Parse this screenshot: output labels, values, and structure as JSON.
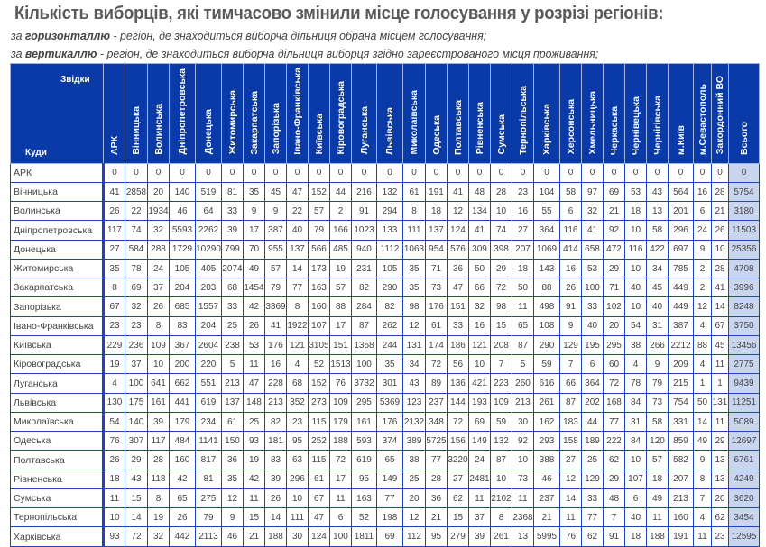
{
  "title": "Кількість виборців, які тимчасово змінили місце голосування у розрізі регіонів:",
  "subtitle1": {
    "prefix": "за ",
    "bold": "горизонталлю",
    "rest": " - регіон, де знаходиться виборча дільниця обрана місцем голосування;"
  },
  "subtitle2": {
    "prefix": "за ",
    "bold": "вертикаллю",
    "rest": " - регіон, де знаходиться виборча дільниця виборця згідно зареєстрованого місця проживання;"
  },
  "colors": {
    "header_bg": "#0a3aa8",
    "border": "#1c46b4",
    "total_bg": "#c9d5ee"
  },
  "table": {
    "corner_from": "Звідки",
    "corner_to": "Куди",
    "columns": [
      "АРК",
      "Вінницька",
      "Волинська",
      "Дніпропетровська",
      "Донецька",
      "Житомирська",
      "Закарпатська",
      "Запорізька",
      "Івано-Франківська",
      "Київська",
      "Кіровоградська",
      "Луганська",
      "Львівська",
      "Миколаївська",
      "Одеська",
      "Полтавська",
      "Рівненська",
      "Сумська",
      "Тернопільська",
      "Харківська",
      "Херсонська",
      "Хмельницька",
      "Черкаська",
      "Чернівецька",
      "Чернігівська",
      "м.Київ",
      "м.Севастополь",
      "Закордонний ВО",
      "Всього"
    ],
    "rows": [
      {
        "name": "АРК",
        "values": [
          0,
          0,
          0,
          0,
          0,
          0,
          0,
          0,
          0,
          0,
          0,
          0,
          0,
          0,
          0,
          0,
          0,
          0,
          0,
          0,
          0,
          0,
          0,
          0,
          0,
          0,
          0,
          0,
          0
        ]
      },
      {
        "name": "Вінницька",
        "values": [
          41,
          2858,
          20,
          140,
          519,
          81,
          35,
          45,
          47,
          152,
          44,
          216,
          132,
          61,
          191,
          41,
          48,
          28,
          23,
          104,
          58,
          97,
          69,
          53,
          43,
          564,
          16,
          28,
          5754
        ]
      },
      {
        "name": "Волинська",
        "values": [
          26,
          22,
          1934,
          46,
          64,
          33,
          9,
          9,
          22,
          57,
          2,
          91,
          294,
          8,
          18,
          12,
          134,
          10,
          16,
          55,
          6,
          32,
          21,
          18,
          13,
          201,
          6,
          21,
          3180
        ]
      },
      {
        "name": "Дніпропетровська",
        "values": [
          117,
          74,
          32,
          5593,
          2262,
          39,
          17,
          387,
          40,
          79,
          166,
          1023,
          133,
          111,
          137,
          124,
          41,
          74,
          27,
          364,
          116,
          41,
          92,
          10,
          58,
          296,
          24,
          26,
          11503
        ]
      },
      {
        "name": "Донецька",
        "values": [
          27,
          584,
          288,
          1729,
          10290,
          799,
          70,
          955,
          137,
          566,
          485,
          940,
          1112,
          1063,
          954,
          576,
          309,
          398,
          207,
          1069,
          414,
          658,
          472,
          116,
          422,
          697,
          9,
          10,
          25356
        ]
      },
      {
        "name": "Житомирська",
        "values": [
          35,
          78,
          24,
          105,
          405,
          2074,
          49,
          57,
          14,
          173,
          19,
          231,
          105,
          35,
          71,
          36,
          50,
          29,
          18,
          143,
          16,
          53,
          29,
          10,
          34,
          785,
          2,
          28,
          4708
        ]
      },
      {
        "name": "Закарпатська",
        "values": [
          8,
          69,
          37,
          204,
          203,
          68,
          1454,
          79,
          77,
          163,
          57,
          82,
          290,
          35,
          73,
          47,
          66,
          72,
          50,
          88,
          26,
          100,
          71,
          40,
          45,
          449,
          2,
          41,
          3996
        ]
      },
      {
        "name": "Запорізька",
        "values": [
          67,
          32,
          26,
          685,
          1557,
          33,
          42,
          3369,
          8,
          160,
          88,
          284,
          82,
          98,
          176,
          151,
          32,
          98,
          11,
          498,
          91,
          33,
          102,
          10,
          40,
          449,
          12,
          14,
          8248
        ]
      },
      {
        "name": "Івано-Франківська",
        "values": [
          23,
          23,
          8,
          83,
          204,
          25,
          26,
          41,
          1922,
          107,
          17,
          87,
          262,
          12,
          61,
          33,
          16,
          15,
          65,
          108,
          9,
          40,
          20,
          54,
          31,
          387,
          4,
          67,
          3750
        ]
      },
      {
        "name": "Київська",
        "values": [
          229,
          236,
          109,
          367,
          2604,
          238,
          53,
          176,
          121,
          3105,
          151,
          1358,
          244,
          131,
          174,
          186,
          121,
          208,
          87,
          290,
          129,
          195,
          295,
          38,
          266,
          2212,
          88,
          45,
          13456
        ]
      },
      {
        "name": "Кіровоградська",
        "values": [
          19,
          37,
          10,
          200,
          220,
          5,
          11,
          16,
          4,
          52,
          1513,
          100,
          35,
          34,
          72,
          56,
          10,
          7,
          5,
          59,
          7,
          6,
          60,
          4,
          9,
          209,
          4,
          11,
          2775
        ]
      },
      {
        "name": "Луганська",
        "values": [
          4,
          100,
          641,
          662,
          551,
          213,
          47,
          228,
          68,
          152,
          76,
          3732,
          301,
          43,
          89,
          136,
          421,
          223,
          260,
          616,
          66,
          364,
          72,
          78,
          79,
          215,
          1,
          1,
          9439
        ]
      },
      {
        "name": "Львівська",
        "values": [
          130,
          175,
          161,
          441,
          619,
          137,
          148,
          213,
          352,
          273,
          109,
          295,
          5369,
          123,
          237,
          144,
          193,
          109,
          213,
          261,
          87,
          202,
          168,
          84,
          73,
          754,
          50,
          131,
          11251
        ]
      },
      {
        "name": "Миколаївська",
        "values": [
          54,
          140,
          39,
          179,
          234,
          61,
          25,
          82,
          23,
          115,
          179,
          161,
          176,
          2132,
          348,
          72,
          69,
          59,
          30,
          162,
          183,
          44,
          77,
          31,
          58,
          331,
          14,
          11,
          5089
        ]
      },
      {
        "name": "Одеська",
        "values": [
          76,
          307,
          117,
          484,
          1141,
          150,
          93,
          181,
          95,
          252,
          188,
          593,
          374,
          389,
          5725,
          156,
          149,
          132,
          92,
          293,
          158,
          189,
          222,
          84,
          120,
          859,
          49,
          29,
          12697
        ]
      },
      {
        "name": "Полтавська",
        "values": [
          26,
          29,
          28,
          160,
          817,
          36,
          19,
          83,
          63,
          115,
          72,
          619,
          65,
          38,
          77,
          3220,
          24,
          87,
          10,
          388,
          27,
          25,
          62,
          10,
          57,
          582,
          9,
          13,
          6761
        ]
      },
      {
        "name": "Рівненська",
        "values": [
          18,
          43,
          118,
          42,
          81,
          35,
          42,
          39,
          296,
          61,
          17,
          95,
          149,
          25,
          28,
          27,
          2481,
          10,
          73,
          46,
          12,
          129,
          29,
          107,
          18,
          207,
          8,
          13,
          4249
        ]
      },
      {
        "name": "Сумська",
        "values": [
          11,
          15,
          8,
          65,
          275,
          12,
          11,
          26,
          10,
          67,
          11,
          163,
          77,
          20,
          36,
          62,
          11,
          2102,
          11,
          237,
          14,
          33,
          48,
          6,
          49,
          213,
          7,
          20,
          3620
        ]
      },
      {
        "name": "Тернопільська",
        "values": [
          10,
          14,
          19,
          26,
          79,
          9,
          15,
          14,
          111,
          47,
          6,
          52,
          198,
          12,
          21,
          15,
          37,
          8,
          2368,
          21,
          11,
          77,
          7,
          40,
          11,
          160,
          4,
          62,
          3454
        ]
      },
      {
        "name": "Харківська",
        "values": [
          93,
          72,
          32,
          442,
          2113,
          46,
          21,
          188,
          30,
          124,
          100,
          1811,
          69,
          112,
          95,
          279,
          39,
          261,
          13,
          5995,
          76,
          62,
          91,
          18,
          188,
          191,
          11,
          23,
          12595
        ]
      }
    ]
  }
}
